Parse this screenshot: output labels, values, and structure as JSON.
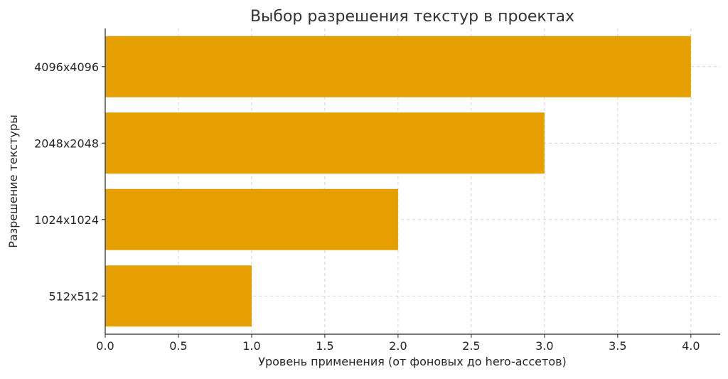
{
  "chart_data": {
    "type": "bar",
    "orientation": "horizontal",
    "title": "Выбор разрешения текстур в проектах",
    "xlabel": "Уровень применения (от фоновых до hero-ассетов)",
    "ylabel": "Разрешение текстуры",
    "categories": [
      "512x512",
      "1024x1024",
      "2048x2048",
      "4096x4096"
    ],
    "values": [
      1.0,
      2.0,
      3.0,
      4.0
    ],
    "xlim": [
      0.0,
      4.2
    ],
    "xticks": [
      0.0,
      0.5,
      1.0,
      1.5,
      2.0,
      2.5,
      3.0,
      3.5,
      4.0
    ],
    "xtick_labels": [
      "0.0",
      "0.5",
      "1.0",
      "1.5",
      "2.0",
      "2.5",
      "3.0",
      "3.5",
      "4.0"
    ],
    "grid": true,
    "bar_color": "#E69F00",
    "grid_color": "#c8c8c8",
    "axis_color": "#262626"
  }
}
